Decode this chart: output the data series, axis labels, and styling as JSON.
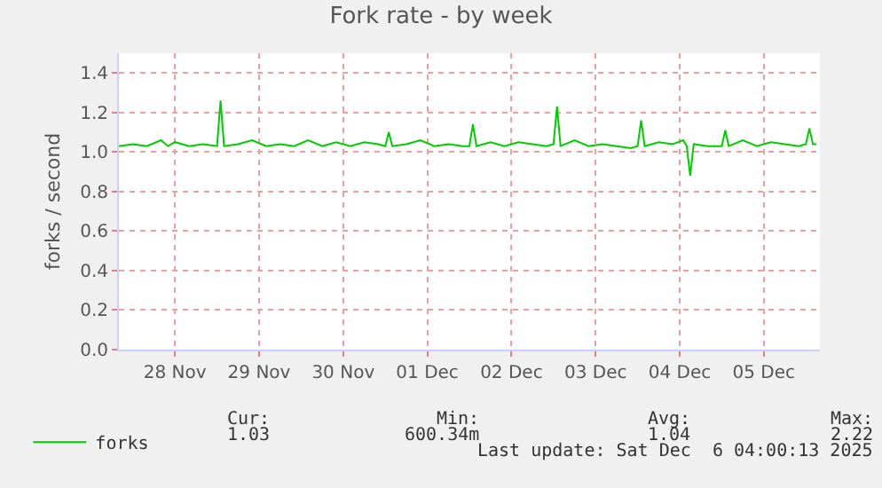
{
  "chart_data": {
    "type": "line",
    "title": "Fork rate - by week",
    "ylabel": "forks / second",
    "xlim": [
      "2025-11-27T20:00",
      "2025-12-06T04:00"
    ],
    "ylim": [
      0,
      1.5
    ],
    "xticks": [
      {
        "value": "2025-11-28T12:00",
        "label": "28 Nov"
      },
      {
        "value": "2025-11-29T12:00",
        "label": "29 Nov"
      },
      {
        "value": "2025-11-30T12:00",
        "label": "30 Nov"
      },
      {
        "value": "2025-12-01T12:00",
        "label": "01 Dec"
      },
      {
        "value": "2025-12-02T12:00",
        "label": "02 Dec"
      },
      {
        "value": "2025-12-03T12:00",
        "label": "03 Dec"
      },
      {
        "value": "2025-12-04T12:00",
        "label": "04 Dec"
      },
      {
        "value": "2025-12-05T12:00",
        "label": "05 Dec"
      }
    ],
    "yticks": [
      {
        "value": 0,
        "label": "0.0"
      },
      {
        "value": 0.2,
        "label": "0.2"
      },
      {
        "value": 0.4,
        "label": "0.4"
      },
      {
        "value": 0.6,
        "label": "0.6"
      },
      {
        "value": 0.8,
        "label": "0.8"
      },
      {
        "value": 1.0,
        "label": "1.0"
      },
      {
        "value": 1.2,
        "label": "1.2"
      },
      {
        "value": 1.4,
        "label": "1.4"
      }
    ],
    "grid": true,
    "legend": "bottom left",
    "marker": "none",
    "line_style": "solid",
    "series": [
      {
        "name": "forks",
        "color": "#00cc00",
        "x": [
          "2025-11-27T20:00",
          "2025-11-28T00:00",
          "2025-11-28T04:00",
          "2025-11-28T08:00",
          "2025-11-28T10:00",
          "2025-11-28T12:00",
          "2025-11-28T16:00",
          "2025-11-28T20:00",
          "2025-11-29T00:00",
          "2025-11-29T01:00",
          "2025-11-29T02:00",
          "2025-11-29T06:00",
          "2025-11-29T10:00",
          "2025-11-29T14:00",
          "2025-11-29T18:00",
          "2025-11-29T22:00",
          "2025-11-30T02:00",
          "2025-11-30T06:00",
          "2025-11-30T10:00",
          "2025-11-30T14:00",
          "2025-11-30T18:00",
          "2025-11-30T22:00",
          "2025-12-01T00:00",
          "2025-12-01T01:00",
          "2025-12-01T02:00",
          "2025-12-01T06:00",
          "2025-12-01T10:00",
          "2025-12-01T14:00",
          "2025-12-01T18:00",
          "2025-12-01T22:00",
          "2025-12-02T00:00",
          "2025-12-02T01:00",
          "2025-12-02T02:00",
          "2025-12-02T06:00",
          "2025-12-02T10:00",
          "2025-12-02T14:00",
          "2025-12-02T18:00",
          "2025-12-02T22:00",
          "2025-12-03T00:00",
          "2025-12-03T01:00",
          "2025-12-03T02:00",
          "2025-12-03T06:00",
          "2025-12-03T10:00",
          "2025-12-03T14:00",
          "2025-12-03T18:00",
          "2025-12-03T22:00",
          "2025-12-04T00:00",
          "2025-12-04T01:00",
          "2025-12-04T02:00",
          "2025-12-04T06:00",
          "2025-12-04T10:00",
          "2025-12-04T13:00",
          "2025-12-04T14:00",
          "2025-12-04T15:00",
          "2025-12-04T16:00",
          "2025-12-04T20:00",
          "2025-12-05T00:00",
          "2025-12-05T01:00",
          "2025-12-05T02:00",
          "2025-12-05T06:00",
          "2025-12-05T10:00",
          "2025-12-05T14:00",
          "2025-12-05T18:00",
          "2025-12-05T22:00",
          "2025-12-06T00:00",
          "2025-12-06T01:00",
          "2025-12-06T02:00",
          "2025-12-06T03:00"
        ],
        "values": [
          1.03,
          1.04,
          1.03,
          1.06,
          1.03,
          1.05,
          1.03,
          1.04,
          1.03,
          1.26,
          1.03,
          1.04,
          1.06,
          1.03,
          1.04,
          1.03,
          1.06,
          1.03,
          1.05,
          1.03,
          1.05,
          1.04,
          1.03,
          1.1,
          1.03,
          1.04,
          1.06,
          1.03,
          1.04,
          1.03,
          1.03,
          1.14,
          1.03,
          1.05,
          1.03,
          1.05,
          1.04,
          1.03,
          1.04,
          1.23,
          1.03,
          1.06,
          1.03,
          1.04,
          1.03,
          1.02,
          1.03,
          1.16,
          1.03,
          1.05,
          1.04,
          1.06,
          1.03,
          0.88,
          1.04,
          1.03,
          1.03,
          1.11,
          1.03,
          1.06,
          1.03,
          1.05,
          1.04,
          1.03,
          1.04,
          1.12,
          1.04,
          1.04
        ]
      }
    ],
    "annotations": [
      "Cur:",
      "Min:",
      "Avg:",
      "Max:",
      "1.03",
      "600.34m",
      "1.04",
      "2.22",
      "Last update: Sat Dec  6 04:00:13 2025"
    ]
  }
}
